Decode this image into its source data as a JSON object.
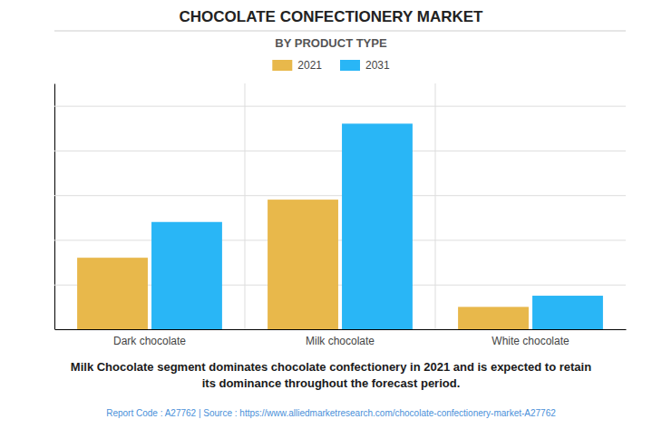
{
  "chart_data": {
    "type": "bar",
    "title": "CHOCOLATE CONFECTIONERY MARKET",
    "subtitle": "BY PRODUCT TYPE",
    "categories": [
      "Dark chocolate",
      "Milk chocolate",
      "White chocolate"
    ],
    "series": [
      {
        "name": "2021",
        "color": "#E8B84B",
        "values": [
          3.2,
          5.8,
          1.0
        ]
      },
      {
        "name": "2031",
        "color": "#29B6F6",
        "values": [
          4.8,
          9.2,
          1.5
        ]
      }
    ],
    "ylim": [
      0,
      11
    ],
    "yticks": [
      0,
      2,
      4,
      6,
      8,
      10
    ],
    "grid": true,
    "legend": "top",
    "tick_labels": "x",
    "annotations": [
      "Milk Chocolate segment dominates chocolate confectionery in 2021 and is expected to retain",
      "its dominance throughout the forecast period.",
      "Report Code : A27762  |  Source : https://www.alliedmarketresearch.com/chocolate-confectionery-market-A27762"
    ]
  }
}
